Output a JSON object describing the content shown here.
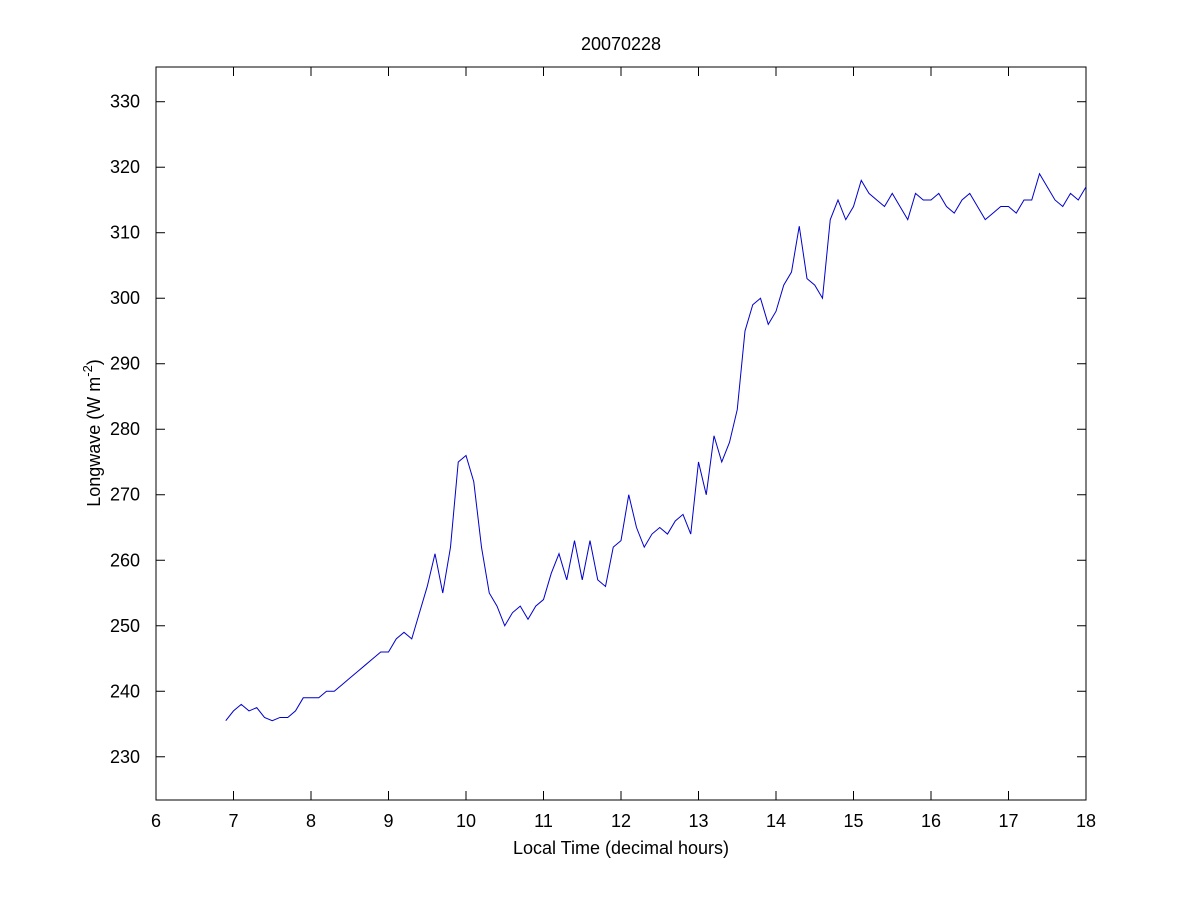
{
  "chart_data": {
    "type": "line",
    "title": "20070228",
    "x_label": "Local Time (decimal hours)",
    "y_label": [
      "Longwave (W m",
      "-2",
      ")"
    ],
    "x": [
      6.9,
      7.0,
      7.1,
      7.2,
      7.3,
      7.4,
      7.5,
      7.6,
      7.7,
      7.8,
      7.9,
      8.0,
      8.1,
      8.2,
      8.3,
      8.4,
      8.5,
      8.6,
      8.7,
      8.8,
      8.9,
      9.0,
      9.1,
      9.2,
      9.3,
      9.4,
      9.5,
      9.6,
      9.7,
      9.8,
      9.9,
      10.0,
      10.1,
      10.2,
      10.3,
      10.4,
      10.5,
      10.6,
      10.7,
      10.8,
      10.9,
      11.0,
      11.1,
      11.2,
      11.3,
      11.4,
      11.5,
      11.6,
      11.7,
      11.8,
      11.9,
      12.0,
      12.1,
      12.2,
      12.3,
      12.4,
      12.5,
      12.6,
      12.7,
      12.8,
      12.9,
      13.0,
      13.1,
      13.2,
      13.3,
      13.4,
      13.5,
      13.6,
      13.7,
      13.8,
      13.9,
      14.0,
      14.1,
      14.2,
      14.3,
      14.4,
      14.5,
      14.6,
      14.7,
      14.8,
      14.9,
      15.0,
      15.1,
      15.2,
      15.3,
      15.4,
      15.5,
      15.6,
      15.7,
      15.8,
      15.9,
      16.0,
      16.1,
      16.2,
      16.3,
      16.4,
      16.5,
      16.6,
      16.7,
      16.8,
      16.9,
      17.0,
      17.1,
      17.2,
      17.3,
      17.4,
      17.5,
      17.6,
      17.7,
      17.8,
      17.9,
      18.0
    ],
    "series": [
      {
        "color": "#0000cc",
        "values": [
          235.5,
          237,
          238,
          237,
          237.5,
          236,
          235.5,
          236,
          236,
          237,
          239,
          239,
          239,
          240,
          240,
          241,
          242,
          243,
          244,
          245,
          246,
          246,
          248,
          249,
          248,
          252,
          256,
          261,
          255,
          262,
          275,
          276,
          272,
          262,
          255,
          253,
          250,
          252,
          253,
          251,
          253,
          254,
          258,
          261,
          257,
          263,
          257,
          263,
          257,
          256,
          262,
          263,
          270,
          265,
          262,
          264,
          265,
          264,
          266,
          267,
          264,
          275,
          270,
          279,
          275,
          278,
          283,
          295,
          299,
          300,
          296,
          298,
          302,
          304,
          311,
          303,
          302,
          300,
          312,
          315,
          312,
          314,
          318,
          316,
          315,
          314,
          316,
          314,
          312,
          316,
          315,
          315,
          316,
          314,
          313,
          315,
          316,
          314,
          312,
          313,
          314,
          314,
          313,
          315,
          315,
          319,
          317,
          315,
          314,
          316,
          315,
          317
        ]
      }
    ],
    "xlim": [
      6,
      18
    ],
    "ylim": [
      223.4,
      335.3
    ],
    "xticks": [
      6,
      7,
      8,
      9,
      10,
      11,
      12,
      13,
      14,
      15,
      16,
      17,
      18
    ],
    "yticks": [
      230,
      240,
      250,
      260,
      270,
      280,
      290,
      300,
      310,
      320,
      330
    ]
  }
}
